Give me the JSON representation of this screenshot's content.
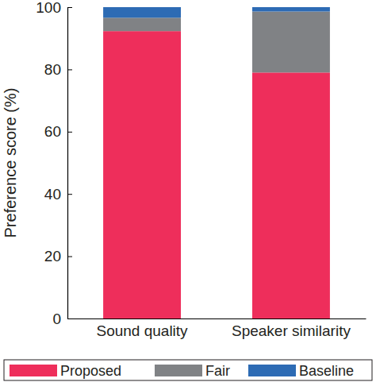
{
  "chart_data": {
    "type": "bar",
    "stacked": true,
    "y_label": "Preference score (%)",
    "categories": [
      "Sound quality",
      "Speaker similarity"
    ],
    "series": [
      {
        "name": "Proposed",
        "color": "#ee2e5b",
        "values": [
          92.3,
          79
        ]
      },
      {
        "name": "Fair",
        "color": "#808285",
        "values": [
          4.3,
          19.6
        ]
      },
      {
        "name": "Baseline",
        "color": "#2d6bb4",
        "values": [
          3.4,
          1.4
        ]
      }
    ],
    "ylim": [
      0,
      100
    ],
    "yticks": [
      0,
      20,
      40,
      60,
      80,
      100
    ],
    "legend": "bottom"
  }
}
